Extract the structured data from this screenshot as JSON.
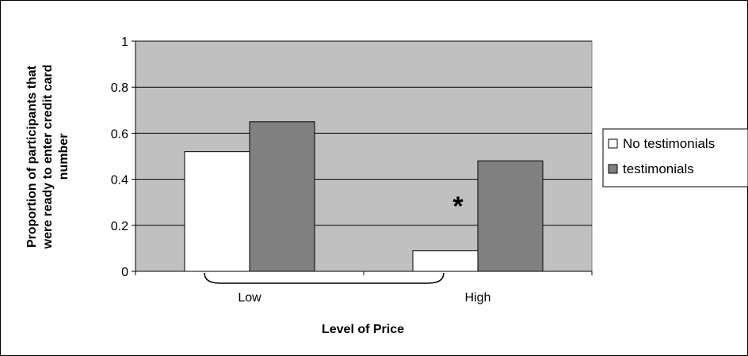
{
  "chart_data": {
    "type": "bar",
    "categories": [
      "Low",
      "High"
    ],
    "series": [
      {
        "name": "No testimonials",
        "values": [
          0.52,
          0.09
        ],
        "color": "#ffffff"
      },
      {
        "name": "testimonials",
        "values": [
          0.65,
          0.48
        ],
        "color": "#808080"
      }
    ],
    "title": "",
    "xlabel": "Level of Price",
    "ylabel_lines": [
      "Proportion of participants that",
      "were ready to enter credit card",
      "number"
    ],
    "ylim": [
      0,
      1
    ],
    "yticks": [
      "0",
      "0.2",
      "0.4",
      "0.6",
      "0.8",
      "1"
    ],
    "grid": true,
    "plot_background": "#c0c0c0",
    "legend_placement": "right",
    "annotations": [
      {
        "text": "*",
        "note_category": "High"
      }
    ]
  }
}
